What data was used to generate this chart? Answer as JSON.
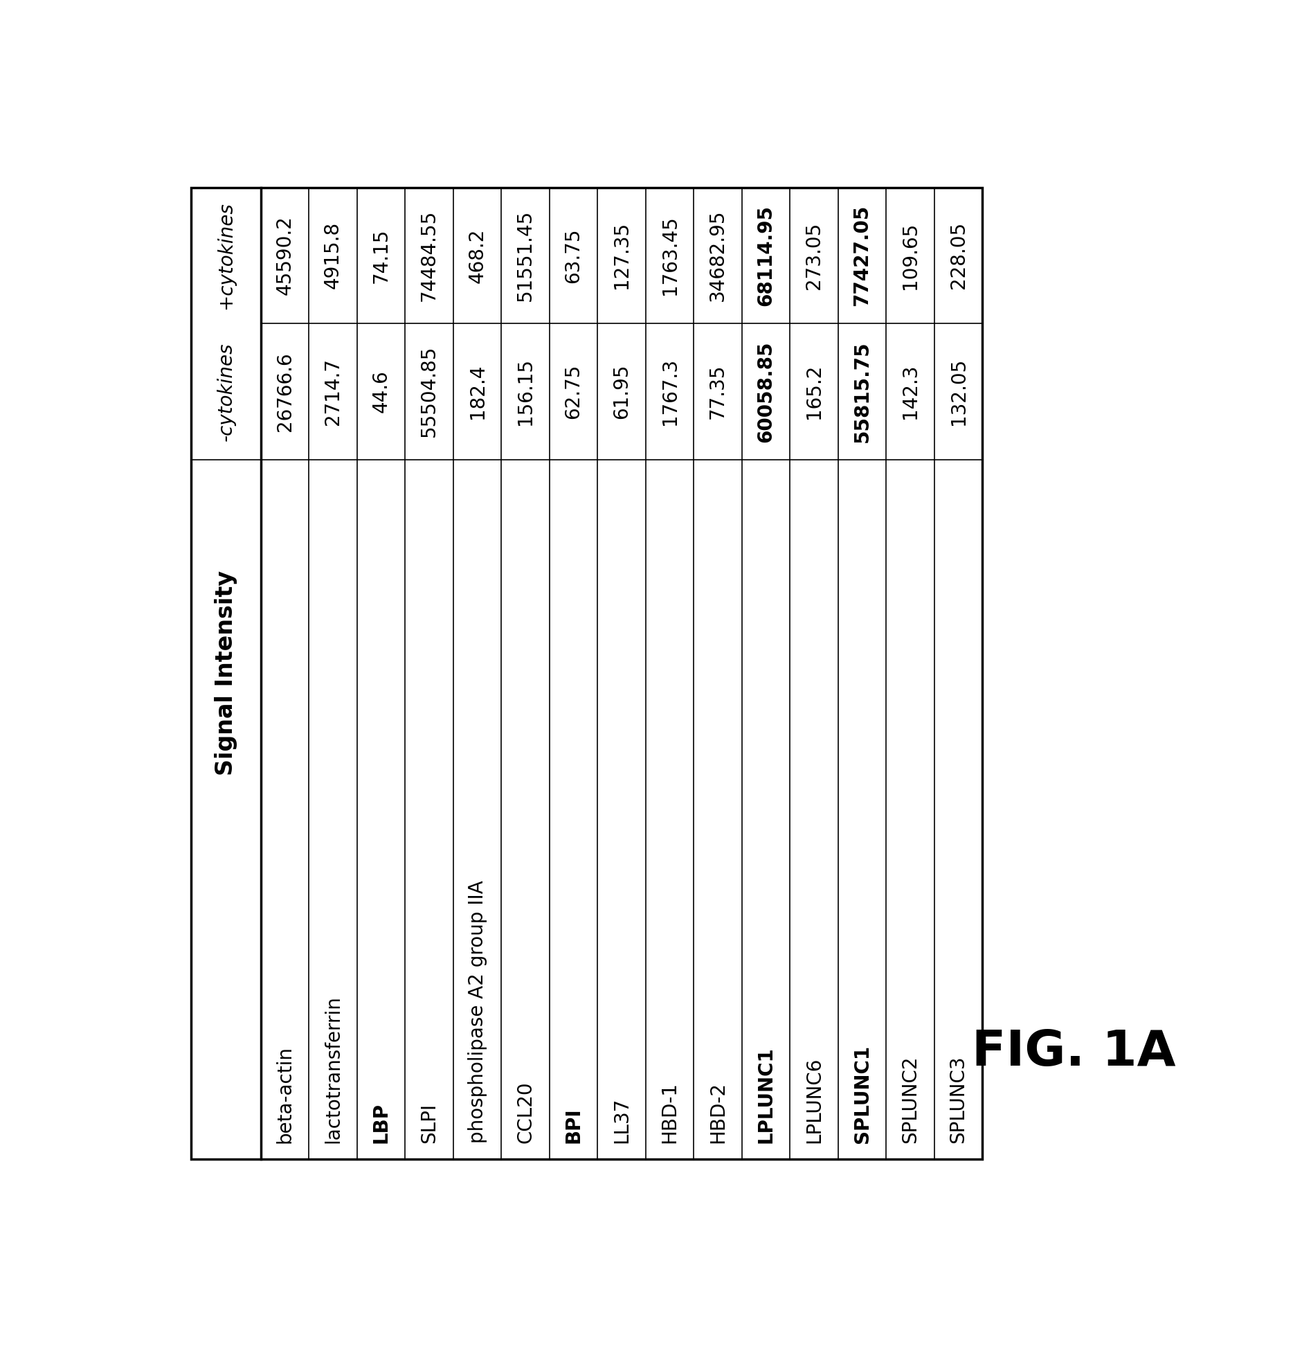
{
  "header_main": "Signal Intensity",
  "header_col2": "-cytokines",
  "header_col3": "+cytokines",
  "rows": [
    {
      "name": "beta-actin",
      "bold_name": false,
      "minus": "26766.6",
      "bold_minus": false,
      "plus": "45590.2",
      "bold_plus": false
    },
    {
      "name": "lactotransferrin",
      "bold_name": false,
      "minus": "2714.7",
      "bold_minus": false,
      "plus": "4915.8",
      "bold_plus": false
    },
    {
      "name": "LBP",
      "bold_name": true,
      "minus": "44.6",
      "bold_minus": false,
      "plus": "74.15",
      "bold_plus": false
    },
    {
      "name": "SLPI",
      "bold_name": false,
      "minus": "55504.85",
      "bold_minus": false,
      "plus": "74484.55",
      "bold_plus": false
    },
    {
      "name": "phospholipase A2 group IIA",
      "bold_name": false,
      "minus": "182.4",
      "bold_minus": false,
      "plus": "468.2",
      "bold_plus": false
    },
    {
      "name": "CCL20",
      "bold_name": false,
      "minus": "156.15",
      "bold_minus": false,
      "plus": "51551.45",
      "bold_plus": false
    },
    {
      "name": "BPI",
      "bold_name": true,
      "minus": "62.75",
      "bold_minus": false,
      "plus": "63.75",
      "bold_plus": false
    },
    {
      "name": "LL37",
      "bold_name": false,
      "minus": "61.95",
      "bold_minus": false,
      "plus": "127.35",
      "bold_plus": false
    },
    {
      "name": "HBD-1",
      "bold_name": false,
      "minus": "1767.3",
      "bold_minus": false,
      "plus": "1763.45",
      "bold_plus": false
    },
    {
      "name": "HBD-2",
      "bold_name": false,
      "minus": "77.35",
      "bold_minus": false,
      "plus": "34682.95",
      "bold_plus": false
    },
    {
      "name": "LPLUNC1",
      "bold_name": true,
      "minus": "60058.85",
      "bold_minus": true,
      "plus": "68114.95",
      "bold_plus": true
    },
    {
      "name": "LPLUNC6",
      "bold_name": false,
      "minus": "165.2",
      "bold_minus": false,
      "plus": "273.05",
      "bold_plus": false
    },
    {
      "name": "SPLUNC1",
      "bold_name": true,
      "minus": "55815.75",
      "bold_minus": true,
      "plus": "77427.05",
      "bold_plus": true
    },
    {
      "name": "SPLUNC2",
      "bold_name": false,
      "minus": "142.3",
      "bold_minus": false,
      "plus": "109.65",
      "bold_plus": false
    },
    {
      "name": "SPLUNC3",
      "bold_name": false,
      "minus": "132.05",
      "bold_minus": false,
      "plus": "228.05",
      "bold_plus": false
    }
  ],
  "fig_label": "FIG. 1A",
  "fig_label_fontsize": 52,
  "background_color": "#ffffff",
  "border_color": "#000000",
  "text_color": "#000000",
  "table_border_lw": 2.5,
  "inner_line_lw": 1.2,
  "data_fontsize": 20,
  "name_fontsize": 20,
  "header_fontsize": 24,
  "subheader_fontsize": 20
}
